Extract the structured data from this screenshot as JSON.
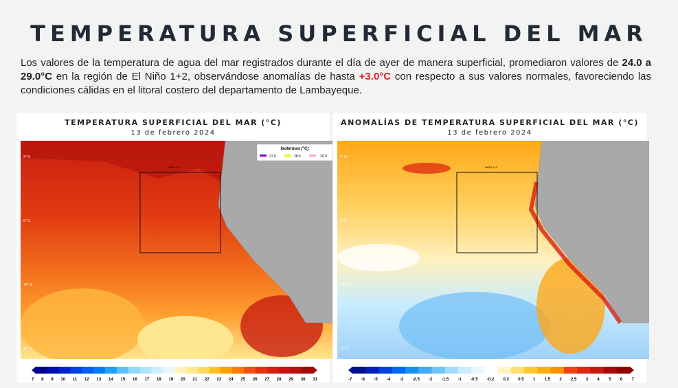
{
  "title": "TEMPERATURA SUPERFICIAL DEL MAR",
  "paragraph": {
    "p1": "Los valores de la temperatura de agua del mar registrados durante el día de ayer de manera superficial, promediaron valores de ",
    "b1": "24.0 a 29.0°C",
    "p2": " en la región de El Niño 1+2, observándose anomalías de hasta ",
    "r1": "+3.0°C",
    "p3": " con respecto a sus valores normales, favoreciendo las condiciones cálidas en el litoral costero del departamento de Lambayeque."
  },
  "left": {
    "title": "TEMPERATURA SUPERFICIAL DEL MAR (°C)",
    "date": "13 de febrero 2024",
    "legend_title": "Isotermas (°C)",
    "isotherms": [
      {
        "label": "27.0",
        "color": "#7a00d0"
      },
      {
        "label": "28.5",
        "color": "#f5f500"
      },
      {
        "label": "29.0",
        "color": "#f4a6d0"
      }
    ],
    "ticks": [
      "7",
      "8",
      "9",
      "10",
      "11",
      "12",
      "13",
      "14",
      "15",
      "16",
      "17",
      "18",
      "19",
      "20",
      "21",
      "22",
      "23",
      "24",
      "25",
      "26",
      "27",
      "28",
      "29",
      "30",
      "31"
    ],
    "colors": [
      "#00008f",
      "#0010b0",
      "#0025d0",
      "#0040e8",
      "#0060f5",
      "#0080f5",
      "#20a0f5",
      "#60c0fa",
      "#90d8fc",
      "#b0e4fd",
      "#d0eefe",
      "#e8f6ff",
      "#fff4c0",
      "#ffe890",
      "#ffd860",
      "#ffc020",
      "#ffa000",
      "#ff7800",
      "#f54c10",
      "#e83010",
      "#d82010",
      "#c81410",
      "#b81010",
      "#a00a0a"
    ]
  },
  "right": {
    "title": "ANOMALÍAS DE TEMPERATURA SUPERFICIAL DEL MAR (°C)",
    "date": "13 de febrero 2024",
    "ticks": [
      "-7",
      "-6",
      "-5",
      "-4",
      "-3",
      "-2.5",
      "-2",
      "-1.5",
      "-1",
      "-0.5",
      "-0.2",
      "0.2",
      "0.5",
      "1",
      "1.5",
      "2",
      "2.5",
      "3",
      "4",
      "5",
      "6",
      "7"
    ],
    "colors": [
      "#00108f",
      "#0020c0",
      "#0040e0",
      "#0068f0",
      "#1890f0",
      "#40a8f5",
      "#70c4fa",
      "#a0dafc",
      "#c8ecfe",
      "#e8f6ff",
      "#ffffff",
      "#fff4c0",
      "#ffe070",
      "#ffc830",
      "#ffae10",
      "#ff9000",
      "#f04010",
      "#e02810",
      "#c81810",
      "#a80a0a",
      "#900000"
    ]
  },
  "labels": {
    "lat1": "2° N",
    "lat2": "6° S",
    "lat3": "14° S",
    "lat4": "22° S",
    "region": "NIÑO 1+2"
  }
}
